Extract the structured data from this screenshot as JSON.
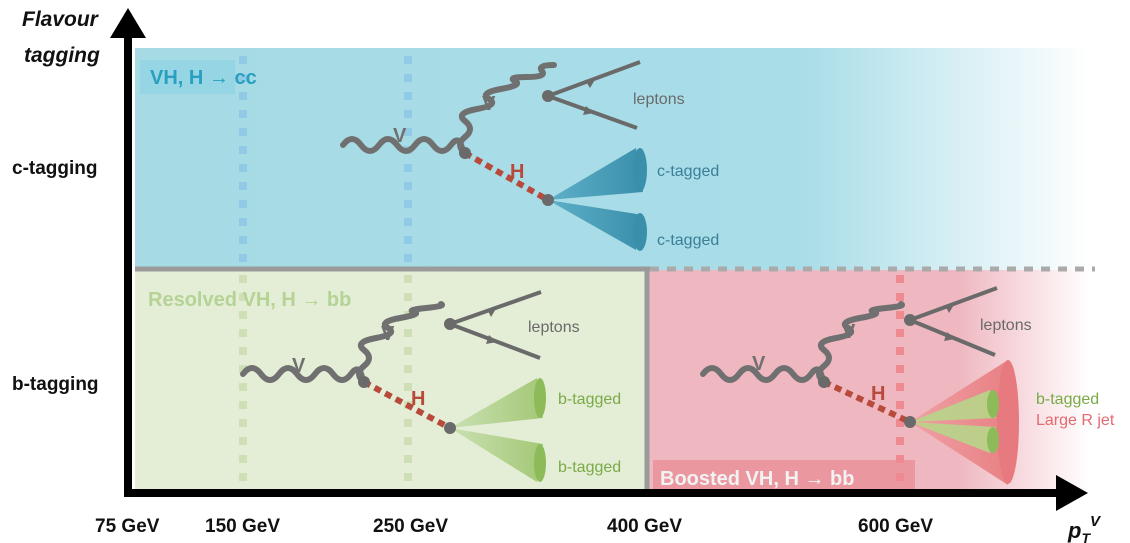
{
  "yaxis": {
    "title_line1": "Flavour",
    "title_line2": "tagging",
    "levels": [
      "c-tagging",
      "b-tagging"
    ]
  },
  "xaxis": {
    "ticks": [
      "75 GeV",
      "150 GeV",
      "250 GeV",
      "400 GeV",
      "600 GeV"
    ],
    "title_base": "p",
    "title_sub": "T",
    "title_sup": "V"
  },
  "regions": {
    "cc": {
      "title": "VH, H → cc"
    },
    "resolved_bb": {
      "title": "Resolved VH, H → bb"
    },
    "boosted_bb": {
      "title": "Boosted VH, H → bb"
    }
  },
  "feynman": {
    "boson_v": "V",
    "higgs": "H",
    "leptons": "leptons",
    "c_tagged": "c-tagged",
    "b_tagged": "b-tagged",
    "large_r_jet": "Large R jet"
  },
  "colors": {
    "cc_region": "#a9dde8",
    "resolved_region": "#e4eed6",
    "boosted_region": "#efb7c0",
    "higgs_line": "#b84a3c",
    "c_jet": "#3a8fab",
    "b_jet": "#8dbb5a",
    "large_jet": "#e77a7e",
    "boson": "#6e6e6e"
  }
}
